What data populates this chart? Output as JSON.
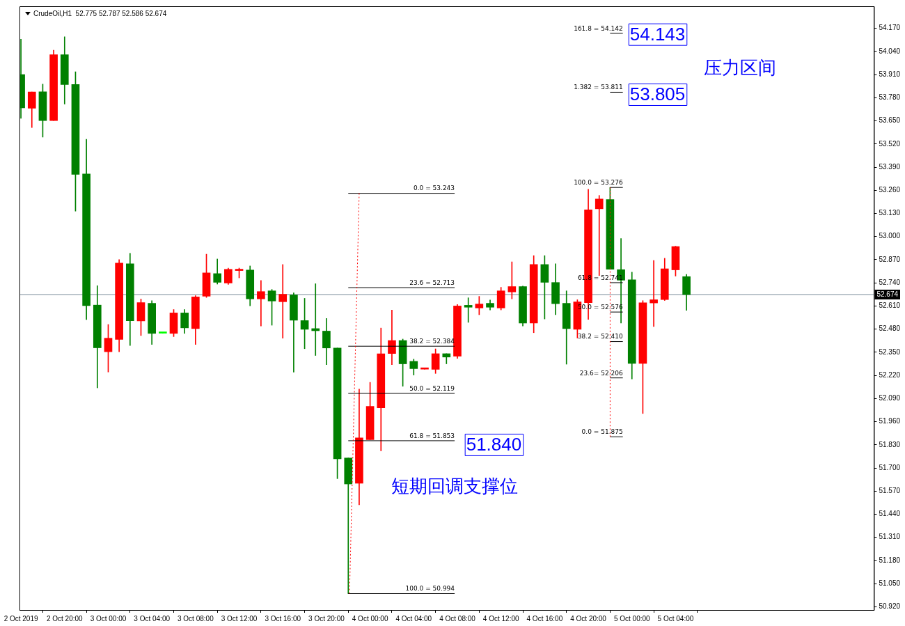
{
  "chart_data": {
    "type": "candlestick",
    "title": "CrudeOil,H1  52.775 52.787 52.586 52.674",
    "x": [
      "2019-10-02T16:00",
      "2019-10-02T17:00",
      "2019-10-02T18:00",
      "2019-10-02T19:00",
      "2019-10-02T20:00",
      "2019-10-02T21:00",
      "2019-10-02T22:00",
      "2019-10-02T23:00",
      "2019-10-03T00:00",
      "2019-10-03T01:00",
      "2019-10-03T02:00",
      "2019-10-03T03:00",
      "2019-10-03T04:00",
      "2019-10-03T05:00",
      "2019-10-03T06:00",
      "2019-10-03T07:00",
      "2019-10-03T08:00",
      "2019-10-03T09:00",
      "2019-10-03T10:00",
      "2019-10-03T11:00",
      "2019-10-03T12:00",
      "2019-10-03T13:00",
      "2019-10-03T14:00",
      "2019-10-03T15:00",
      "2019-10-03T16:00",
      "2019-10-03T17:00",
      "2019-10-03T18:00",
      "2019-10-03T19:00",
      "2019-10-03T20:00",
      "2019-10-03T21:00",
      "2019-10-03T22:00",
      "2019-10-03T23:00",
      "2019-10-04T00:00",
      "2019-10-04T01:00",
      "2019-10-04T02:00",
      "2019-10-04T03:00",
      "2019-10-04T04:00",
      "2019-10-04T05:00",
      "2019-10-04T06:00",
      "2019-10-04T07:00",
      "2019-10-04T08:00",
      "2019-10-04T09:00",
      "2019-10-04T10:00",
      "2019-10-04T11:00",
      "2019-10-04T12:00",
      "2019-10-04T13:00",
      "2019-10-04T14:00",
      "2019-10-04T15:00",
      "2019-10-04T16:00",
      "2019-10-04T17:00",
      "2019-10-04T18:00",
      "2019-10-04T19:00",
      "2019-10-04T20:00",
      "2019-10-04T21:00",
      "2019-10-04T22:00",
      "2019-10-04T23:00",
      "2019-10-05T00:00",
      "2019-10-05T01:00",
      "2019-10-05T02:00",
      "2019-10-05T03:00",
      "2019-10-05T04:00",
      "2019-10-05T05:00"
    ],
    "ohlc": [
      [
        53.91,
        54.109,
        53.664,
        53.723
      ],
      [
        53.721,
        53.812,
        53.613,
        53.812
      ],
      [
        53.813,
        53.856,
        53.559,
        53.652
      ],
      [
        53.652,
        54.047,
        53.652,
        54.022
      ],
      [
        54.022,
        54.123,
        53.745,
        53.854
      ],
      [
        53.855,
        53.926,
        53.143,
        53.349
      ],
      [
        53.352,
        53.546,
        52.534,
        52.612
      ],
      [
        52.615,
        52.724,
        52.15,
        52.375
      ],
      [
        52.353,
        52.506,
        52.239,
        52.429
      ],
      [
        52.422,
        52.871,
        52.353,
        52.851
      ],
      [
        52.847,
        52.906,
        52.388,
        52.527
      ],
      [
        52.526,
        52.649,
        52.444,
        52.629
      ],
      [
        52.625,
        52.64,
        52.394,
        52.456
      ],
      [
        52.457,
        52.457,
        52.457,
        52.457
      ],
      [
        52.456,
        52.59,
        52.438,
        52.571
      ],
      [
        52.571,
        52.59,
        52.456,
        52.487
      ],
      [
        52.483,
        52.668,
        52.394,
        52.661
      ],
      [
        52.665,
        52.901,
        52.658,
        52.796
      ],
      [
        52.792,
        52.874,
        52.733,
        52.743
      ],
      [
        52.739,
        52.823,
        52.731,
        52.816
      ],
      [
        52.809,
        52.823,
        52.768,
        52.816
      ],
      [
        52.812,
        52.835,
        52.611,
        52.65
      ],
      [
        52.65,
        52.753,
        52.498,
        52.691
      ],
      [
        52.695,
        52.703,
        52.502,
        52.638
      ],
      [
        52.634,
        52.843,
        52.429,
        52.676
      ],
      [
        52.672,
        52.684,
        52.238,
        52.53
      ],
      [
        52.528,
        52.653,
        52.37,
        52.479
      ],
      [
        52.483,
        52.735,
        52.332,
        52.471
      ],
      [
        52.469,
        52.54,
        52.28,
        52.374
      ],
      [
        52.374,
        52.374,
        51.64,
        51.751
      ],
      [
        51.756,
        51.756,
        50.994,
        51.61
      ],
      [
        51.614,
        52.143,
        51.493,
        51.869
      ],
      [
        51.859,
        52.181,
        51.859,
        52.046
      ],
      [
        52.038,
        52.486,
        51.796,
        52.341
      ],
      [
        52.343,
        52.587,
        52.28,
        52.416
      ],
      [
        52.416,
        52.424,
        52.159,
        52.285
      ],
      [
        52.299,
        52.311,
        52.222,
        52.258
      ],
      [
        52.255,
        52.26,
        52.255,
        52.26
      ],
      [
        52.254,
        52.369,
        52.231,
        52.342
      ],
      [
        52.342,
        52.342,
        52.285,
        52.323
      ],
      [
        52.328,
        52.618,
        52.316,
        52.61
      ],
      [
        52.614,
        52.656,
        52.518,
        52.603
      ],
      [
        52.599,
        52.664,
        52.561,
        52.621
      ],
      [
        52.625,
        52.644,
        52.588,
        52.603
      ],
      [
        52.599,
        52.715,
        52.588,
        52.695
      ],
      [
        52.689,
        52.858,
        52.65,
        52.719
      ],
      [
        52.719,
        52.722,
        52.498,
        52.514
      ],
      [
        52.514,
        52.893,
        52.46,
        52.843
      ],
      [
        52.843,
        52.893,
        52.537,
        52.743
      ],
      [
        52.742,
        52.847,
        52.561,
        52.623
      ],
      [
        52.625,
        52.695,
        52.283,
        52.483
      ],
      [
        52.479,
        52.645,
        52.43,
        52.633
      ],
      [
        52.629,
        53.266,
        52.535,
        53.15
      ],
      [
        53.156,
        53.231,
        52.781,
        53.211
      ],
      [
        53.208,
        53.276,
        52.816,
        52.816
      ],
      [
        52.814,
        52.989,
        52.514,
        52.755
      ],
      [
        52.757,
        52.8,
        52.2,
        52.287
      ],
      [
        52.287,
        52.64,
        52.006,
        52.628
      ],
      [
        52.627,
        52.866,
        52.495,
        52.645
      ],
      [
        52.646,
        52.878,
        52.641,
        52.819
      ],
      [
        52.813,
        52.946,
        52.778,
        52.944
      ],
      [
        52.775,
        52.787,
        52.586,
        52.674
      ]
    ],
    "colors": [
      "#008000",
      "#ff0000",
      "#008000",
      "#ff0000",
      "#008000",
      "#008000",
      "#008000",
      "#008000",
      "#ff0000",
      "#ff0000",
      "#008000",
      "#ff0000",
      "#008000",
      "#00ff00",
      "#ff0000",
      "#008000",
      "#ff0000",
      "#ff0000",
      "#008000",
      "#ff0000",
      "#ff0000",
      "#008000",
      "#ff0000",
      "#008000",
      "#ff0000",
      "#008000",
      "#008000",
      "#008000",
      "#008000",
      "#008000",
      "#008000",
      "#ff0000",
      "#ff0000",
      "#ff0000",
      "#ff0000",
      "#008000",
      "#008000",
      "#ff0000",
      "#ff0000",
      "#008000",
      "#ff0000",
      "#008000",
      "#ff0000",
      "#008000",
      "#ff0000",
      "#ff0000",
      "#008000",
      "#ff0000",
      "#008000",
      "#008000",
      "#008000",
      "#ff0000",
      "#ff0000",
      "#ff0000",
      "#008000",
      "#008000",
      "#008000",
      "#ff0000",
      "#ff0000",
      "#ff0000",
      "#ff0000",
      "#008000"
    ],
    "series": [
      {
        "type": "line",
        "color": "#ff0000",
        "line_style": "dotted",
        "marker": "none",
        "x": [
          "2019-10-03T22:07",
          "2019-10-03T23:00"
        ],
        "values": [
          50.994,
          53.243
        ]
      },
      {
        "type": "line",
        "color": "#ff0000",
        "line_style": "dotted",
        "marker": "none",
        "x": [
          "2019-10-04T22:00",
          "2019-10-04T22:00"
        ],
        "values": [
          53.276,
          51.875
        ]
      },
      {
        "type": "line",
        "color": "#000000",
        "line_style": "solid",
        "marker": "none",
        "x": [
          "2019-10-03T22:00",
          "2019-10-04T07:45"
        ],
        "values": [
          53.243,
          53.243
        ]
      },
      {
        "type": "line",
        "color": "#000000",
        "line_style": "solid",
        "marker": "none",
        "x": [
          "2019-10-03T22:00",
          "2019-10-04T07:45"
        ],
        "values": [
          52.713,
          52.713
        ]
      },
      {
        "type": "line",
        "color": "#000000",
        "line_style": "solid",
        "marker": "none",
        "x": [
          "2019-10-03T22:00",
          "2019-10-04T07:45"
        ],
        "values": [
          52.384,
          52.384
        ]
      },
      {
        "type": "line",
        "color": "#000000",
        "line_style": "solid",
        "marker": "none",
        "x": [
          "2019-10-03T22:00",
          "2019-10-04T07:45"
        ],
        "values": [
          52.119,
          52.119
        ]
      },
      {
        "type": "line",
        "color": "#000000",
        "line_style": "solid",
        "marker": "none",
        "x": [
          "2019-10-03T22:00",
          "2019-10-04T07:45"
        ],
        "values": [
          51.853,
          51.853
        ]
      },
      {
        "type": "line",
        "color": "#000000",
        "line_style": "solid",
        "marker": "none",
        "x": [
          "2019-10-03T22:00",
          "2019-10-04T07:45"
        ],
        "values": [
          50.994,
          50.994
        ]
      },
      {
        "type": "line",
        "color": "#000000",
        "line_style": "solid",
        "marker": "none",
        "x": [
          "2019-10-04T22:00",
          "2019-10-04T23:10"
        ],
        "values": [
          54.142,
          54.142
        ]
      },
      {
        "type": "line",
        "color": "#000000",
        "line_style": "solid",
        "marker": "none",
        "x": [
          "2019-10-04T22:00",
          "2019-10-04T23:10"
        ],
        "values": [
          53.811,
          53.811
        ]
      },
      {
        "type": "line",
        "color": "#000000",
        "line_style": "solid",
        "marker": "none",
        "x": [
          "2019-10-04T22:00",
          "2019-10-04T23:10"
        ],
        "values": [
          53.276,
          53.276
        ]
      },
      {
        "type": "line",
        "color": "#000000",
        "line_style": "solid",
        "marker": "none",
        "x": [
          "2019-10-04T22:00",
          "2019-10-04T23:10"
        ],
        "values": [
          52.741,
          52.741
        ]
      },
      {
        "type": "line",
        "color": "#000000",
        "line_style": "solid",
        "marker": "none",
        "x": [
          "2019-10-04T22:00",
          "2019-10-04T23:10"
        ],
        "values": [
          52.576,
          52.576
        ]
      },
      {
        "type": "line",
        "color": "#000000",
        "line_style": "solid",
        "marker": "none",
        "x": [
          "2019-10-04T22:00",
          "2019-10-04T23:10"
        ],
        "values": [
          52.41,
          52.41
        ]
      },
      {
        "type": "line",
        "color": "#000000",
        "line_style": "solid",
        "marker": "none",
        "x": [
          "2019-10-04T22:00",
          "2019-10-04T23:10"
        ],
        "values": [
          52.206,
          52.206
        ]
      },
      {
        "type": "line",
        "color": "#000000",
        "line_style": "solid",
        "marker": "none",
        "x": [
          "2019-10-04T22:00",
          "2019-10-04T23:10"
        ],
        "values": [
          51.875,
          51.875
        ]
      }
    ],
    "annotations": [
      {
        "text": "0.0 = 53.243",
        "x": "2019-10-04T07:45",
        "y": 53.243
      },
      {
        "text": "23.6 = 52.713",
        "x": "2019-10-04T07:45",
        "y": 52.713
      },
      {
        "text": "38.2 = 52.384",
        "x": "2019-10-04T07:45",
        "y": 52.384
      },
      {
        "text": "50.0 = 52.119",
        "x": "2019-10-04T07:45",
        "y": 52.119
      },
      {
        "text": "61.8 = 51.853",
        "x": "2019-10-04T07:45",
        "y": 51.853
      },
      {
        "text": "100.0 = 50.994",
        "x": "2019-10-04T07:45",
        "y": 50.994
      },
      {
        "text": "161.8 = 54.142",
        "x": "2019-10-04T23:10",
        "y": 54.142
      },
      {
        "text": "1.382 = 53.811",
        "x": "2019-10-04T23:10",
        "y": 53.811
      },
      {
        "text": "100.0 = 53.276",
        "x": "2019-10-04T23:10",
        "y": 53.276
      },
      {
        "text": "61.8 = 52.741",
        "x": "2019-10-04T23:10",
        "y": 52.741
      },
      {
        "text": "50.0 = 52.576",
        "x": "2019-10-04T23:10",
        "y": 52.576
      },
      {
        "text": "38.2 = 52.410",
        "x": "2019-10-04T23:10",
        "y": 52.41
      },
      {
        "text": "23.6= 52.206",
        "x": "2019-10-04T23:10",
        "y": 52.206
      },
      {
        "text": "0.0 = 51.875",
        "x": "2019-10-04T23:10",
        "y": 51.875
      },
      "54.143",
      "53.805",
      "51.840",
      "压力区间",
      "短期回调支撑位"
    ],
    "ref_lines": [
      {
        "axis": "y",
        "value": 52.674,
        "label": "52.674",
        "color": "#778899"
      }
    ],
    "xlim": [
      "2019-10-02T15:52",
      "2019-10-05T22:11"
    ],
    "xticks": [
      {
        "value": "2019-10-02T16:00",
        "label": "2 Oct 2019"
      },
      {
        "value": "2019-10-02T20:00",
        "label": "2 Oct 20:00"
      },
      {
        "value": "2019-10-03T00:00",
        "label": "3 Oct 00:00"
      },
      {
        "value": "2019-10-03T04:00",
        "label": "3 Oct 04:00"
      },
      {
        "value": "2019-10-03T08:00",
        "label": "3 Oct 08:00"
      },
      {
        "value": "2019-10-03T12:00",
        "label": "3 Oct 12:00"
      },
      {
        "value": "2019-10-03T16:00",
        "label": "3 Oct 16:00"
      },
      {
        "value": "2019-10-03T20:00",
        "label": "3 Oct 20:00"
      },
      {
        "value": "2019-10-04T00:00",
        "label": "4 Oct 00:00"
      },
      {
        "value": "2019-10-04T04:00",
        "label": "4 Oct 04:00"
      },
      {
        "value": "2019-10-04T08:00",
        "label": "4 Oct 08:00"
      },
      {
        "value": "2019-10-04T12:00",
        "label": "4 Oct 12:00"
      },
      {
        "value": "2019-10-04T16:00",
        "label": "4 Oct 16:00"
      },
      {
        "value": "2019-10-04T20:00",
        "label": "4 Oct 20:00"
      },
      {
        "value": "2019-10-05T00:00",
        "label": "5 Oct 00:00"
      },
      {
        "value": "2019-10-05T04:00",
        "label": "5 Oct 04:00"
      }
    ],
    "ylim": [
      50.902,
      54.294
    ],
    "yticks": [
      {
        "value": 54.17,
        "label": "54.170"
      },
      {
        "value": 54.04,
        "label": "54.040"
      },
      {
        "value": 53.91,
        "label": "53.910"
      },
      {
        "value": 53.78,
        "label": "53.780"
      },
      {
        "value": 53.65,
        "label": "53.650"
      },
      {
        "value": 53.52,
        "label": "53.520"
      },
      {
        "value": 53.39,
        "label": "53.390"
      },
      {
        "value": 53.26,
        "label": "53.260"
      },
      {
        "value": 53.13,
        "label": "53.130"
      },
      {
        "value": 53.0,
        "label": "53.000"
      },
      {
        "value": 52.87,
        "label": "52.870"
      },
      {
        "value": 52.74,
        "label": "52.740"
      },
      {
        "value": 52.61,
        "label": "52.610"
      },
      {
        "value": 52.48,
        "label": "52.480"
      },
      {
        "value": 52.35,
        "label": "52.350"
      },
      {
        "value": 52.22,
        "label": "52.220"
      },
      {
        "value": 52.09,
        "label": "52.090"
      },
      {
        "value": 51.96,
        "label": "51.960"
      },
      {
        "value": 51.83,
        "label": "51.830"
      },
      {
        "value": 51.7,
        "label": "51.700"
      },
      {
        "value": 51.57,
        "label": "51.570"
      },
      {
        "value": 51.44,
        "label": "51.440"
      },
      {
        "value": 51.31,
        "label": "51.310"
      },
      {
        "value": 51.18,
        "label": "51.180"
      },
      {
        "value": 51.05,
        "label": "51.050"
      },
      {
        "value": 50.92,
        "label": "50.920"
      }
    ],
    "grid": false,
    "legend": false
  }
}
